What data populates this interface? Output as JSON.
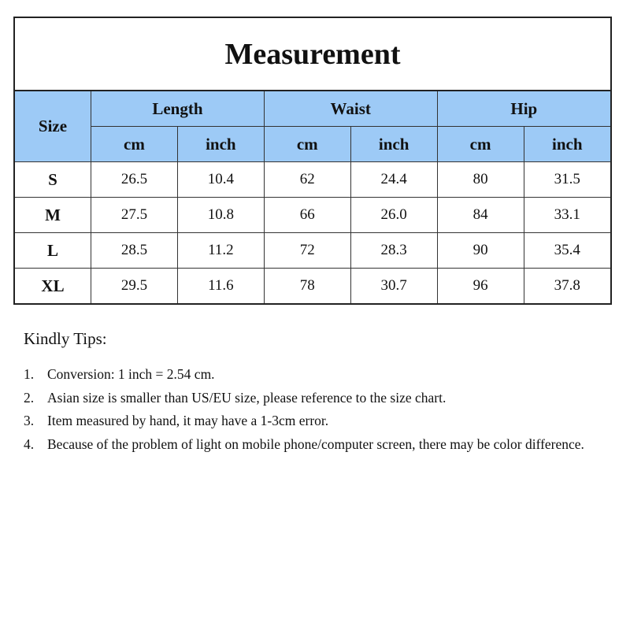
{
  "title": "Measurement",
  "table": {
    "size_header": "Size",
    "groups": [
      "Length",
      "Waist",
      "Hip"
    ],
    "units": [
      "cm",
      "inch",
      "cm",
      "inch",
      "cm",
      "inch"
    ],
    "rows": [
      {
        "size": "S",
        "values": [
          "26.5",
          "10.4",
          "62",
          "24.4",
          "80",
          "31.5"
        ]
      },
      {
        "size": "M",
        "values": [
          "27.5",
          "10.8",
          "66",
          "26.0",
          "84",
          "33.1"
        ]
      },
      {
        "size": "L",
        "values": [
          "28.5",
          "11.2",
          "72",
          "28.3",
          "90",
          "35.4"
        ]
      },
      {
        "size": "XL",
        "values": [
          "29.5",
          "11.6",
          "78",
          "30.7",
          "96",
          "37.8"
        ]
      }
    ]
  },
  "header_color": "#9dcaf6",
  "tips": {
    "title": "Kindly Tips:",
    "items": [
      {
        "num": "1.",
        "text": "Conversion: 1 inch = 2.54 cm."
      },
      {
        "num": "2.",
        "text": "Asian size is smaller than US/EU size, please reference to the size chart."
      },
      {
        "num": "3.",
        "text": "Item measured by hand, it may have a 1-3cm error."
      },
      {
        "num": "4.",
        "text": "Because of the problem of light on mobile phone/computer screen, there may be color difference."
      }
    ]
  }
}
